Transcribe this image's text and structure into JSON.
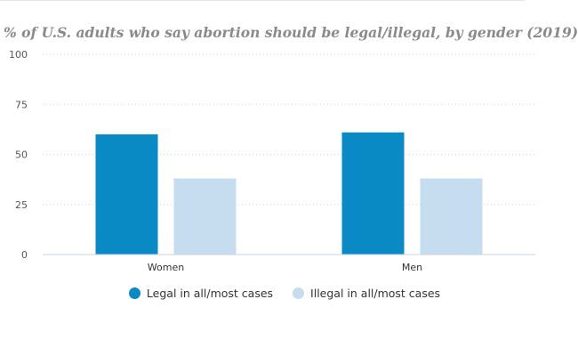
{
  "chart_data": {
    "type": "bar",
    "title": "% of U.S. adults who say abortion should be legal/illegal, by gender (2019)",
    "categories": [
      "Women",
      "Men"
    ],
    "series": [
      {
        "name": "Legal in all/most cases",
        "values": [
          60,
          61
        ],
        "color": "#0a8ac4"
      },
      {
        "name": "Illegal in all/most cases",
        "values": [
          38,
          38
        ],
        "color": "#c6ddf0"
      }
    ],
    "xlabel": "",
    "ylabel": "",
    "ylim": [
      0,
      100
    ],
    "yticks": [
      "0",
      "25",
      "50",
      "75",
      "100"
    ],
    "grid": true,
    "legend_position": "bottom"
  }
}
